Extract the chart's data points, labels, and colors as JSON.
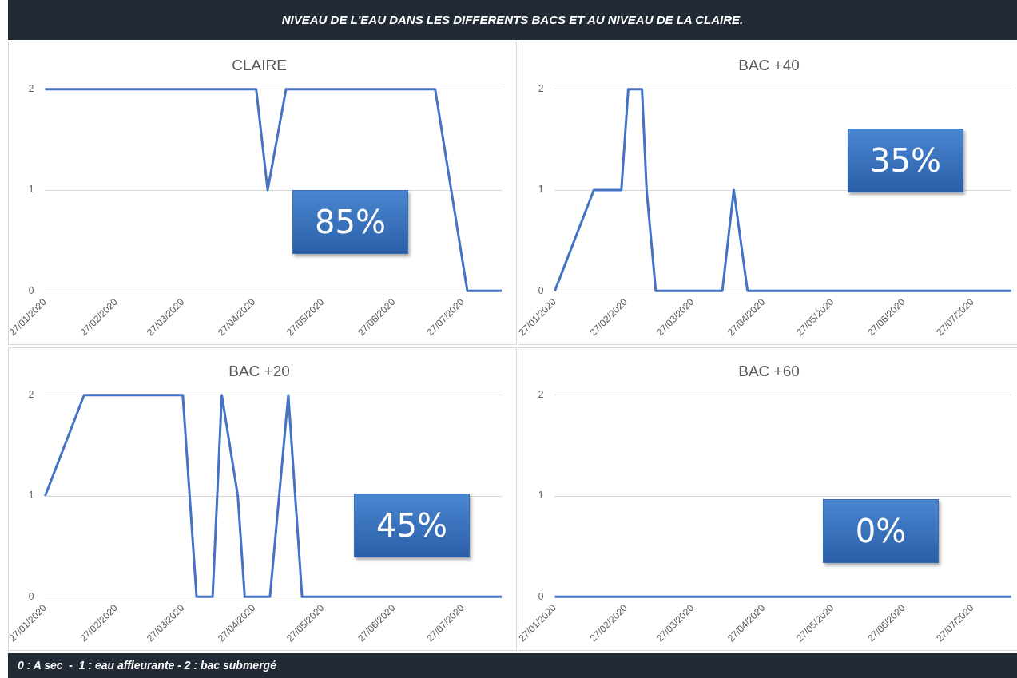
{
  "chart_data": [
    {
      "type": "other",
      "title": "NIVEAU DE L'EAU DANS LES DIFFERENTS BACS ET AU NIVEAU DE LA CLAIRE.",
      "annotations": [
        "0 : A sec  -  1 : eau affleurante - 2 : bac submergé"
      ]
    },
    {
      "type": "line",
      "title": "CLAIRE",
      "color": "#4472c4",
      "marker": "none",
      "legend": false,
      "grid": "y",
      "x": [
        "2020-01-27",
        "2020-04-28",
        "2020-05-03",
        "2020-05-11",
        "2020-07-15",
        "2020-07-29",
        "2020-08-13"
      ],
      "values": [
        2,
        2,
        1,
        2,
        2,
        0,
        0
      ],
      "xlim": [
        "2020-01-27",
        "2020-08-13"
      ],
      "xticks": [
        {
          "value": "2020-01-27",
          "label": "27/01/2020"
        },
        {
          "value": "2020-02-27",
          "label": "27/02/2020"
        },
        {
          "value": "2020-03-27",
          "label": "27/03/2020"
        },
        {
          "value": "2020-04-27",
          "label": "27/04/2020"
        },
        {
          "value": "2020-05-27",
          "label": "27/05/2020"
        },
        {
          "value": "2020-06-27",
          "label": "27/06/2020"
        },
        {
          "value": "2020-07-27",
          "label": "27/07/2020"
        }
      ],
      "ylim": [
        0,
        2
      ],
      "yticks": [
        0,
        1,
        2
      ],
      "annotations": [
        "85%"
      ]
    },
    {
      "type": "line",
      "title": "BAC +40",
      "color": "#4472c4",
      "marker": "none",
      "legend": false,
      "grid": "y",
      "x": [
        "2020-01-27",
        "2020-02-13",
        "2020-02-25",
        "2020-02-28",
        "2020-03-05",
        "2020-03-07",
        "2020-03-11",
        "2020-04-09",
        "2020-04-14",
        "2020-04-20",
        "2020-08-13"
      ],
      "values": [
        0,
        1,
        1,
        2,
        2,
        1,
        0,
        0,
        1,
        0,
        0
      ],
      "xlim": [
        "2020-01-27",
        "2020-08-13"
      ],
      "xticks": [
        {
          "value": "2020-01-27",
          "label": "27/01/2020"
        },
        {
          "value": "2020-02-27",
          "label": "27/02/2020"
        },
        {
          "value": "2020-03-27",
          "label": "27/03/2020"
        },
        {
          "value": "2020-04-27",
          "label": "27/04/2020"
        },
        {
          "value": "2020-05-27",
          "label": "27/05/2020"
        },
        {
          "value": "2020-06-27",
          "label": "27/06/2020"
        },
        {
          "value": "2020-07-27",
          "label": "27/07/2020"
        }
      ],
      "ylim": [
        0,
        2
      ],
      "yticks": [
        0,
        1,
        2
      ],
      "annotations": [
        "35%"
      ]
    },
    {
      "type": "line",
      "title": "BAC +20",
      "color": "#4472c4",
      "marker": "none",
      "legend": false,
      "grid": "y",
      "x": [
        "2020-01-27",
        "2020-02-13",
        "2020-03-27",
        "2020-04-02",
        "2020-04-09",
        "2020-04-13",
        "2020-04-20",
        "2020-04-23",
        "2020-05-04",
        "2020-05-12",
        "2020-05-18",
        "2020-08-13"
      ],
      "values": [
        1,
        2,
        2,
        0,
        0,
        2,
        1,
        0,
        0,
        2,
        0,
        0
      ],
      "xlim": [
        "2020-01-27",
        "2020-08-13"
      ],
      "xticks": [
        {
          "value": "2020-01-27",
          "label": "27/01/2020"
        },
        {
          "value": "2020-02-27",
          "label": "27/02/2020"
        },
        {
          "value": "2020-03-27",
          "label": "27/03/2020"
        },
        {
          "value": "2020-04-27",
          "label": "27/04/2020"
        },
        {
          "value": "2020-05-27",
          "label": "27/05/2020"
        },
        {
          "value": "2020-06-27",
          "label": "27/06/2020"
        },
        {
          "value": "2020-07-27",
          "label": "27/07/2020"
        }
      ],
      "ylim": [
        0,
        2
      ],
      "yticks": [
        0,
        1,
        2
      ],
      "annotations": [
        "45%"
      ]
    },
    {
      "type": "line",
      "title": "BAC +60",
      "color": "#4472c4",
      "marker": "none",
      "legend": false,
      "grid": "y",
      "x": [
        "2020-01-27",
        "2020-08-13"
      ],
      "values": [
        0,
        0
      ],
      "xlim": [
        "2020-01-27",
        "2020-08-13"
      ],
      "xticks": [
        {
          "value": "2020-01-27",
          "label": "27/01/2020"
        },
        {
          "value": "2020-02-27",
          "label": "27/02/2020"
        },
        {
          "value": "2020-03-27",
          "label": "27/03/2020"
        },
        {
          "value": "2020-04-27",
          "label": "27/04/2020"
        },
        {
          "value": "2020-05-27",
          "label": "27/05/2020"
        },
        {
          "value": "2020-06-27",
          "label": "27/06/2020"
        },
        {
          "value": "2020-07-27",
          "label": "27/07/2020"
        }
      ],
      "ylim": [
        0,
        2
      ],
      "yticks": [
        0,
        1,
        2
      ],
      "annotations": [
        "0%"
      ]
    }
  ]
}
